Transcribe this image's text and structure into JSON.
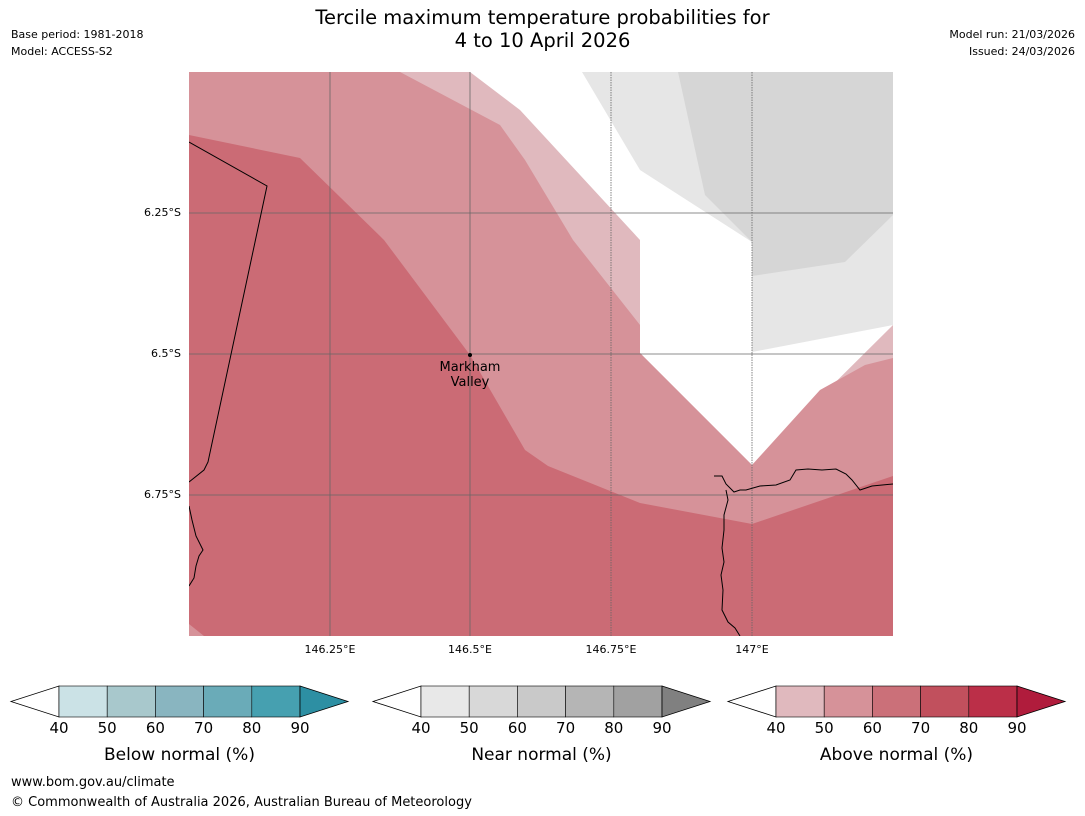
{
  "title_line1": "Tercile maximum temperature probabilities for",
  "title_line2": "4 to 10 April 2026",
  "meta_left": [
    "Base period: 1981-2018",
    "Model: ACCESS-S2"
  ],
  "meta_right": [
    "Model run: 21/03/2026",
    "Issued: 24/03/2026"
  ],
  "map": {
    "lat_labels": [
      "6.25°S",
      "6.5°S",
      "6.75°S"
    ],
    "lon_labels": [
      "146.25°E",
      "146.5°E",
      "146.75°E",
      "147°E"
    ],
    "place": {
      "line1": "Markham",
      "line2": "Valley"
    },
    "colors": {
      "above_50": "#cb6b75",
      "above_40": "#d69299",
      "above_lt40": "#e0b9be",
      "near_50": "#d6d6d6",
      "near_40": "#e6e6e6",
      "white": "#ffffff"
    }
  },
  "colorbars": [
    {
      "title": "Below normal (%)",
      "ticks": [
        "40",
        "50",
        "60",
        "70",
        "80",
        "90"
      ],
      "colors": [
        "#cbe2e6",
        "#a8c8cc",
        "#89b5c0",
        "#6aabb8",
        "#46a0b0",
        "#2d8fa3"
      ]
    },
    {
      "title": "Near normal (%)",
      "ticks": [
        "40",
        "50",
        "60",
        "70",
        "80",
        "90"
      ],
      "colors": [
        "#e8e8e8",
        "#d8d8d8",
        "#c9c9c9",
        "#b5b5b5",
        "#a1a1a1",
        "#808080"
      ]
    },
    {
      "title": "Above normal (%)",
      "ticks": [
        "40",
        "50",
        "60",
        "70",
        "80",
        "90"
      ],
      "colors": [
        "#e0b9be",
        "#d69299",
        "#cb7079",
        "#c1505d",
        "#bb2f48",
        "#b01c3c"
      ]
    }
  ],
  "footer": {
    "url": "www.bom.gov.au/climate",
    "copyright": "© Commonwealth of Australia 2026, Australian Bureau of Meteorology"
  }
}
